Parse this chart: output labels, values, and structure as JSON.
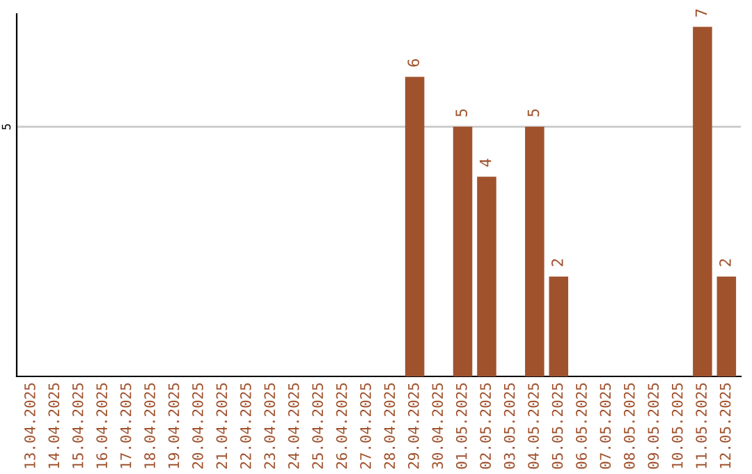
{
  "chart_data": {
    "type": "bar",
    "categories": [
      "13.04.2025",
      "14.04.2025",
      "15.04.2025",
      "16.04.2025",
      "17.04.2025",
      "18.04.2025",
      "19.04.2025",
      "20.04.2025",
      "21.04.2025",
      "22.04.2025",
      "23.04.2025",
      "24.04.2025",
      "25.04.2025",
      "26.04.2025",
      "27.04.2025",
      "28.04.2025",
      "29.04.2025",
      "30.04.2025",
      "01.05.2025",
      "02.05.2025",
      "03.05.2025",
      "04.05.2025",
      "05.05.2025",
      "06.05.2025",
      "07.05.2025",
      "08.05.2025",
      "09.05.2025",
      "10.05.2025",
      "11.05.2025",
      "12.05.2025"
    ],
    "values": [
      null,
      null,
      null,
      null,
      null,
      null,
      null,
      null,
      null,
      null,
      null,
      null,
      null,
      null,
      null,
      null,
      6,
      null,
      5,
      4,
      null,
      5,
      2,
      null,
      null,
      null,
      null,
      null,
      7,
      2
    ],
    "color": "#a0522d",
    "ylim": [
      0,
      7.26
    ],
    "yticks": [
      5
    ],
    "grid": "y",
    "data_labels": true
  }
}
